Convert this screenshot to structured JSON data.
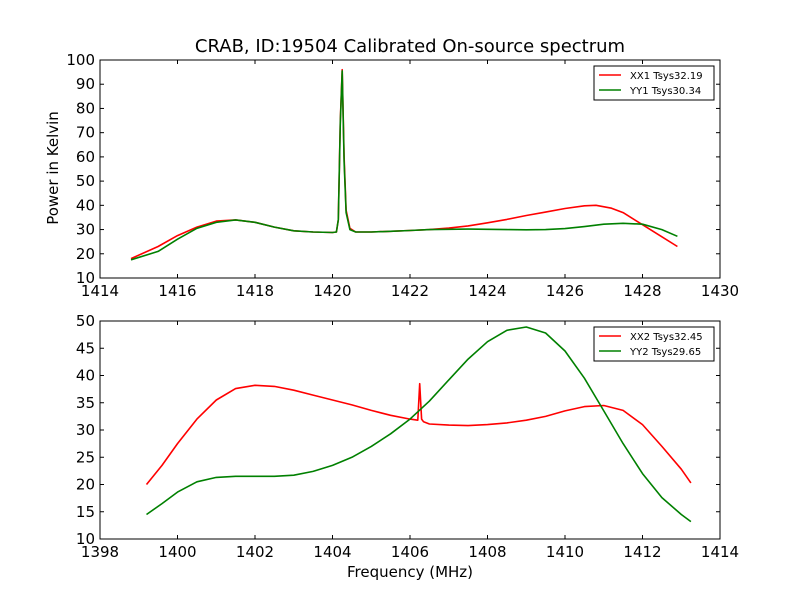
{
  "chart_data": [
    {
      "type": "line",
      "title": "CRAB, ID:19504 Calibrated On-source spectrum",
      "xlabel": "",
      "ylabel": "Power in Kelvin",
      "xlim": [
        1414,
        1430
      ],
      "ylim": [
        10,
        100
      ],
      "x_ticks": [
        "1414",
        "1416",
        "1418",
        "1420",
        "1422",
        "1424",
        "1426",
        "1428",
        "1430"
      ],
      "y_ticks": [
        "10",
        "20",
        "30",
        "40",
        "50",
        "60",
        "70",
        "80",
        "90",
        "100"
      ],
      "legend": "top-right",
      "series": [
        {
          "name": "XX1 Tsys32.19",
          "color": "#ff0000",
          "x": [
            1414.8,
            1415.5,
            1416.0,
            1416.5,
            1417.0,
            1417.5,
            1418.0,
            1418.5,
            1419.0,
            1419.5,
            1420.0,
            1420.1,
            1420.15,
            1420.2,
            1420.25,
            1420.3,
            1420.35,
            1420.45,
            1420.6,
            1421.0,
            1421.5,
            1422.0,
            1422.5,
            1423.0,
            1423.5,
            1424.0,
            1424.5,
            1425.0,
            1425.5,
            1426.0,
            1426.5,
            1426.8,
            1427.2,
            1427.5,
            1428.0,
            1428.5,
            1428.9
          ],
          "y": [
            18,
            23,
            27.5,
            31,
            33.5,
            34,
            33,
            31,
            29.5,
            29,
            28.8,
            29,
            34,
            75,
            96,
            60,
            38,
            30.5,
            29,
            29,
            29.3,
            29.6,
            30,
            30.6,
            31.5,
            32.8,
            34.2,
            35.8,
            37.2,
            38.7,
            39.8,
            40,
            38.8,
            37,
            32,
            27,
            23
          ]
        },
        {
          "name": "YY1 Tsys30.34",
          "color": "#008000",
          "x": [
            1414.8,
            1415.5,
            1416.0,
            1416.5,
            1417.0,
            1417.5,
            1418.0,
            1418.5,
            1419.0,
            1419.5,
            1420.0,
            1420.1,
            1420.15,
            1420.2,
            1420.25,
            1420.3,
            1420.35,
            1420.45,
            1420.6,
            1421.0,
            1421.5,
            1422.0,
            1422.5,
            1423.0,
            1423.5,
            1424.0,
            1424.5,
            1425.0,
            1425.5,
            1426.0,
            1426.5,
            1427.0,
            1427.5,
            1428.0,
            1428.5,
            1428.9
          ],
          "y": [
            17.5,
            21,
            26,
            30.5,
            33,
            34,
            33,
            31,
            29.5,
            29,
            28.8,
            29,
            34,
            74,
            95.5,
            58,
            37,
            30,
            29,
            29,
            29.3,
            29.6,
            30,
            30.1,
            30.2,
            30.1,
            30,
            29.9,
            30,
            30.4,
            31.2,
            32.2,
            32.6,
            32.2,
            30,
            27.2
          ]
        }
      ]
    },
    {
      "type": "line",
      "title": "",
      "xlabel": "Frequency (MHz)",
      "ylabel": "",
      "xlim": [
        1398,
        1414
      ],
      "ylim": [
        10,
        50
      ],
      "x_ticks": [
        "1398",
        "1400",
        "1402",
        "1404",
        "1406",
        "1408",
        "1410",
        "1412",
        "1414"
      ],
      "y_ticks": [
        "10",
        "15",
        "20",
        "25",
        "30",
        "35",
        "40",
        "45",
        "50"
      ],
      "legend": "top-right",
      "series": [
        {
          "name": "XX2 Tsys32.45",
          "color": "#ff0000",
          "x": [
            1399.2,
            1399.6,
            1400.0,
            1400.5,
            1401.0,
            1401.5,
            1402.0,
            1402.5,
            1403.0,
            1403.5,
            1404.0,
            1404.5,
            1405.0,
            1405.5,
            1406.0,
            1406.2,
            1406.25,
            1406.3,
            1406.35,
            1406.5,
            1407.0,
            1407.5,
            1408.0,
            1408.5,
            1409.0,
            1409.5,
            1410.0,
            1410.5,
            1411.0,
            1411.5,
            1412.0,
            1412.5,
            1413.0,
            1413.25
          ],
          "y": [
            20,
            23.5,
            27.5,
            32,
            35.5,
            37.6,
            38.2,
            38,
            37.3,
            36.4,
            35.5,
            34.6,
            33.6,
            32.7,
            32,
            31.8,
            38.5,
            32,
            31.5,
            31.1,
            30.9,
            30.8,
            31,
            31.3,
            31.8,
            32.5,
            33.5,
            34.3,
            34.5,
            33.6,
            31,
            27,
            22.8,
            20.3
          ]
        },
        {
          "name": "YY2 Tsys29.65",
          "color": "#008000",
          "x": [
            1399.2,
            1399.6,
            1400.0,
            1400.5,
            1401.0,
            1401.5,
            1402.0,
            1402.5,
            1403.0,
            1403.5,
            1404.0,
            1404.5,
            1405.0,
            1405.5,
            1406.0,
            1406.5,
            1407.0,
            1407.5,
            1408.0,
            1408.5,
            1409.0,
            1409.5,
            1410.0,
            1410.5,
            1411.0,
            1411.5,
            1412.0,
            1412.5,
            1413.0,
            1413.25
          ],
          "y": [
            14.5,
            16.5,
            18.6,
            20.5,
            21.3,
            21.5,
            21.5,
            21.5,
            21.7,
            22.4,
            23.5,
            25,
            27,
            29.3,
            32,
            35.3,
            39.2,
            43,
            46.2,
            48.3,
            48.9,
            47.8,
            44.5,
            39.5,
            33.5,
            27.5,
            22,
            17.6,
            14.5,
            13.2
          ]
        }
      ]
    }
  ]
}
